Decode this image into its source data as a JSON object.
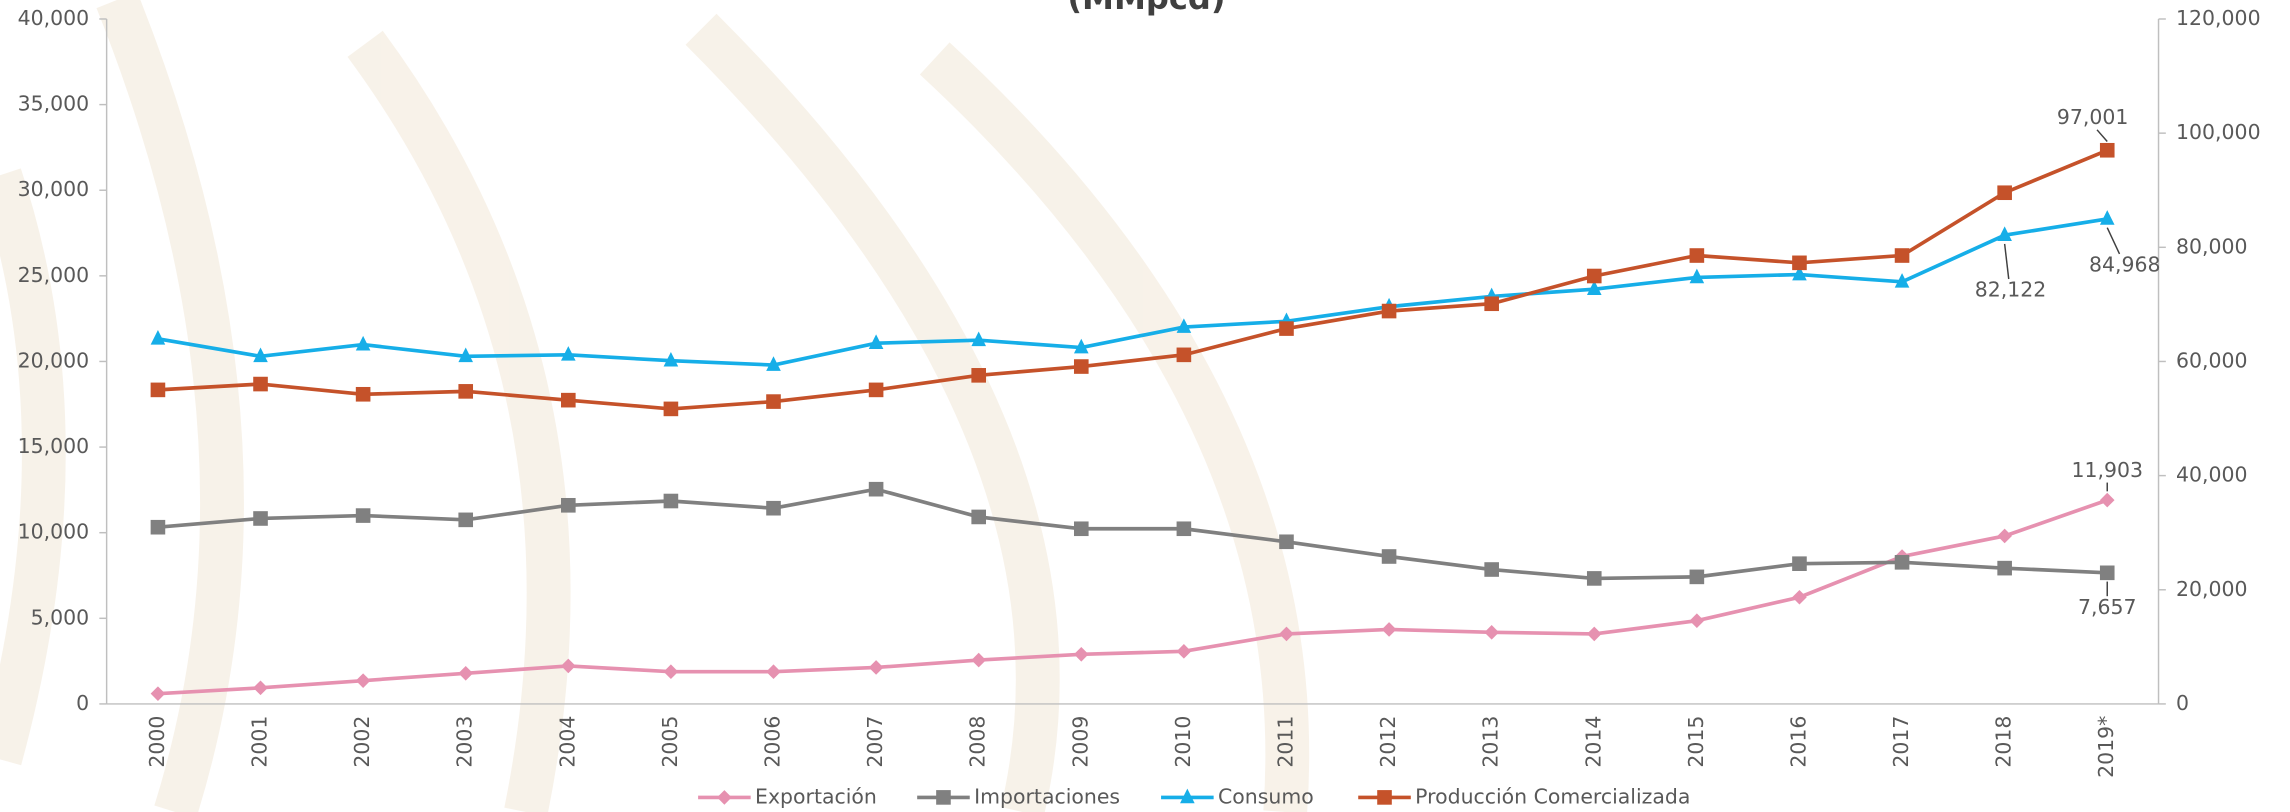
{
  "chart_data": {
    "type": "line",
    "title": "(MMpcd)",
    "categories": [
      "2000",
      "2001",
      "2002",
      "2003",
      "2004",
      "2005",
      "2006",
      "2007",
      "2008",
      "2009",
      "2010",
      "2011",
      "2012",
      "2013",
      "2014",
      "2015",
      "2016",
      "2017",
      "2018",
      "2019*"
    ],
    "series": [
      {
        "name": "Exportación",
        "color": "#e691b0",
        "marker": "diamond",
        "axis": "y",
        "values": [
          600,
          940,
          1360,
          1790,
          2220,
          1880,
          1880,
          2130,
          2560,
          2900,
          3070,
          4090,
          4350,
          4180,
          4090,
          4860,
          6230,
          8610,
          9810,
          11903
        ],
        "value_labels": [
          null,
          null,
          null,
          null,
          null,
          null,
          null,
          null,
          null,
          null,
          null,
          null,
          null,
          null,
          null,
          null,
          null,
          null,
          null,
          "11,903"
        ]
      },
      {
        "name": "Importaciones",
        "color": "#808080",
        "marker": "square",
        "axis": "y",
        "values": [
          10320,
          10830,
          11000,
          10750,
          11600,
          11850,
          11430,
          12540,
          10920,
          10230,
          10230,
          9470,
          8610,
          7850,
          7330,
          7420,
          8190,
          8270,
          7930,
          7657
        ],
        "value_labels": [
          null,
          null,
          null,
          null,
          null,
          null,
          null,
          null,
          null,
          null,
          null,
          null,
          null,
          null,
          null,
          null,
          null,
          null,
          null,
          "7,657"
        ]
      },
      {
        "name": "Consumo",
        "color": "#16aee8",
        "marker": "triangle",
        "axis": "y2",
        "values": [
          63970,
          60900,
          62950,
          60900,
          61160,
          60130,
          59370,
          63200,
          63720,
          62440,
          66020,
          67040,
          69600,
          71390,
          72670,
          74720,
          75230,
          73950,
          82122,
          84968
        ],
        "value_labels": [
          null,
          null,
          null,
          null,
          null,
          null,
          null,
          null,
          null,
          null,
          null,
          null,
          null,
          null,
          null,
          null,
          null,
          null,
          "82,122",
          "84,968"
        ]
      },
      {
        "name": "Producción Comercializada",
        "color": "#c5522a",
        "marker": "square",
        "axis": "y2",
        "values": [
          55020,
          56040,
          54250,
          54760,
          53220,
          51690,
          52970,
          55020,
          57570,
          59110,
          61160,
          65760,
          68830,
          70110,
          74970,
          78560,
          77280,
          78560,
          89560,
          97001
        ],
        "value_labels": [
          null,
          null,
          null,
          null,
          null,
          null,
          null,
          null,
          null,
          null,
          null,
          null,
          null,
          null,
          null,
          null,
          null,
          null,
          null,
          "97,001"
        ]
      }
    ],
    "ylim": [
      0,
      40000
    ],
    "yticks": [
      {
        "value": 0,
        "label": "0"
      },
      {
        "value": 5000,
        "label": "5,000"
      },
      {
        "value": 10000,
        "label": "10,000"
      },
      {
        "value": 15000,
        "label": "15,000"
      },
      {
        "value": 20000,
        "label": "20,000"
      },
      {
        "value": 25000,
        "label": "25,000"
      },
      {
        "value": 30000,
        "label": "30,000"
      },
      {
        "value": 35000,
        "label": "35,000"
      },
      {
        "value": 40000,
        "label": "40,000"
      }
    ],
    "y2lim": [
      0,
      120000
    ],
    "y2ticks": [
      {
        "value": 0,
        "label": "0"
      },
      {
        "value": 20000,
        "label": "20,000"
      },
      {
        "value": 40000,
        "label": "40,000"
      },
      {
        "value": 60000,
        "label": "60,000"
      },
      {
        "value": 80000,
        "label": "80,000"
      },
      {
        "value": 100000,
        "label": "100,000"
      },
      {
        "value": 120000,
        "label": "120,000"
      }
    ],
    "grid": false,
    "legend": "bottom"
  }
}
